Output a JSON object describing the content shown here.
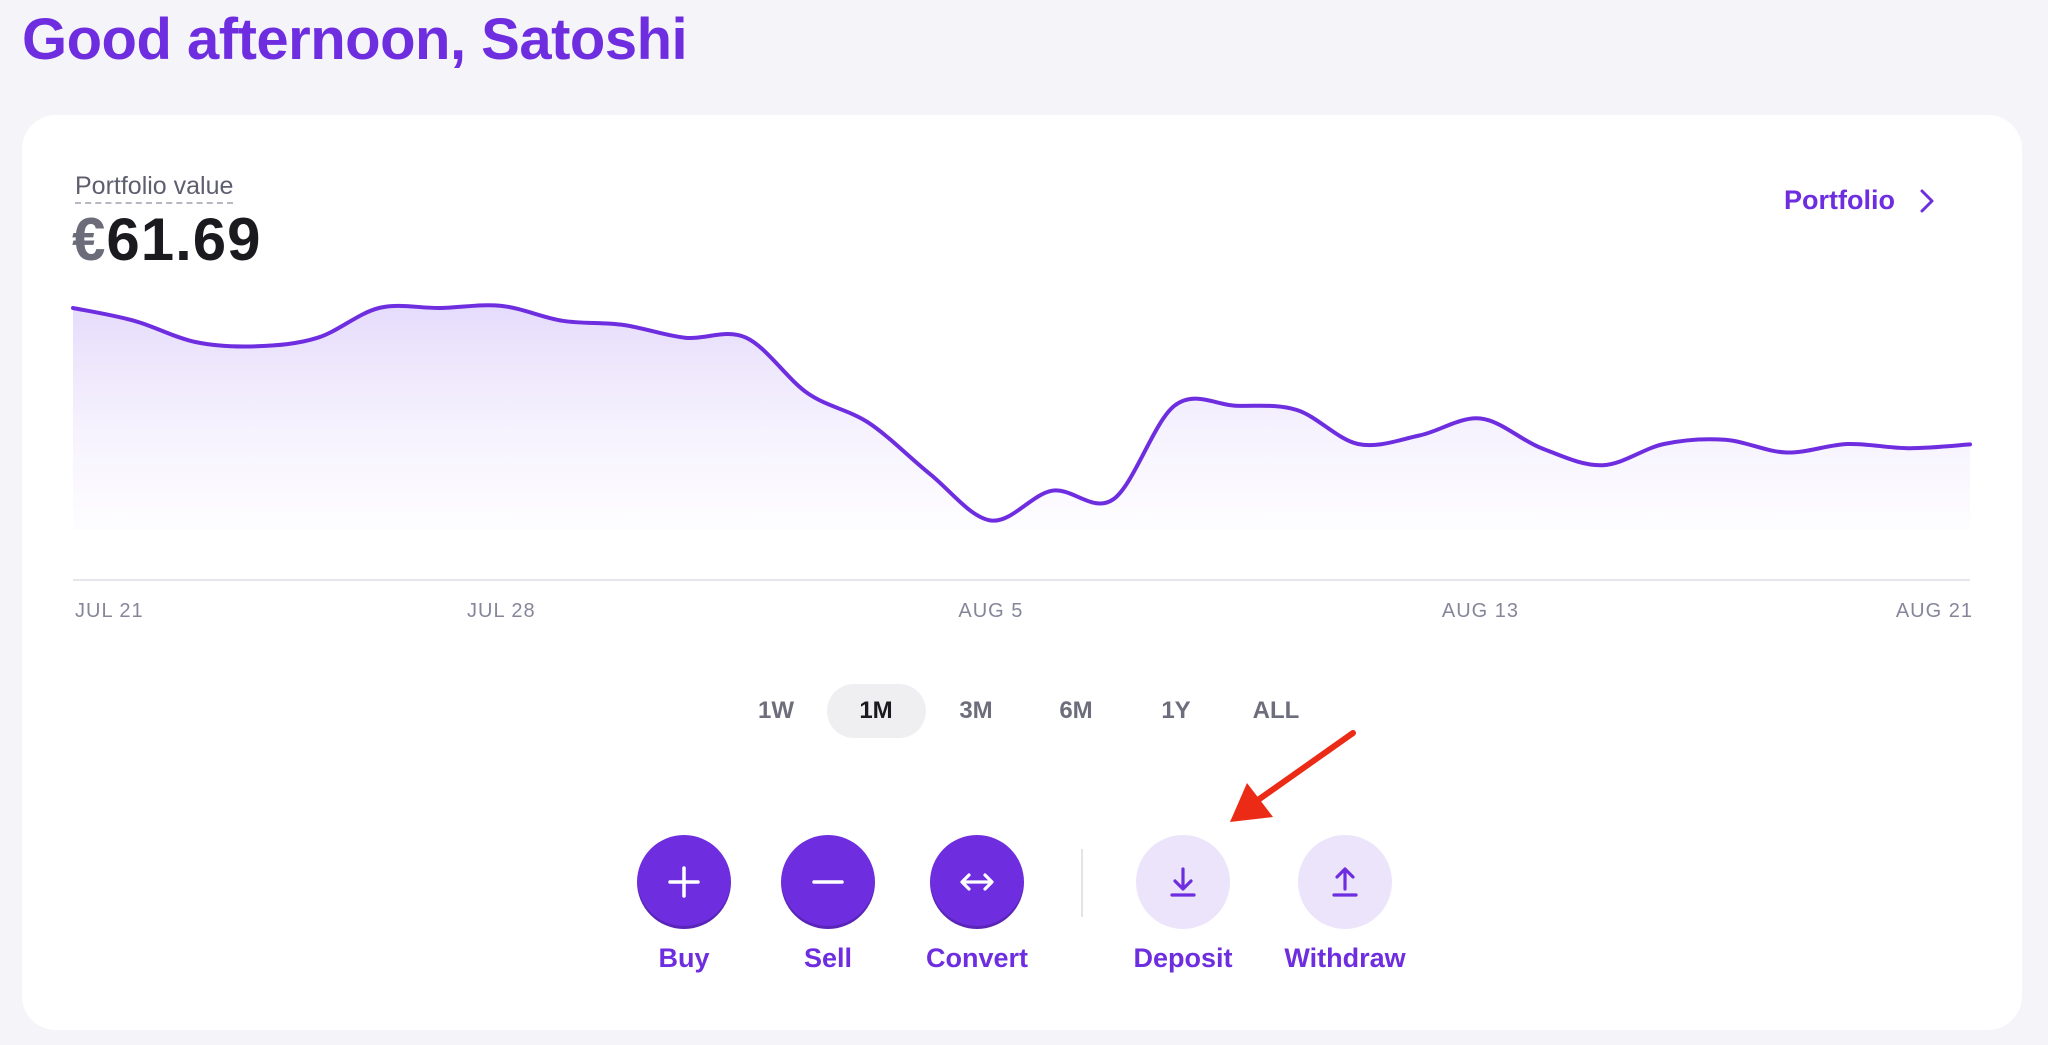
{
  "greeting": "Good afternoon, Satoshi",
  "portfolio": {
    "label": "Portfolio value",
    "currency": "€",
    "amount": "61.69",
    "link_label": "Portfolio"
  },
  "chart_data": {
    "type": "area",
    "title": "",
    "xlabel": "",
    "ylabel": "",
    "x_tick_labels": [
      "JUL 21",
      "JUL 28",
      "AUG 5",
      "AUG 13",
      "AUG 21"
    ],
    "x": [
      "Jul 21",
      "Jul 22",
      "Jul 23",
      "Jul 24",
      "Jul 25",
      "Jul 26",
      "Jul 27",
      "Jul 28",
      "Jul 29",
      "Jul 30",
      "Jul 31",
      "Aug 1",
      "Aug 2",
      "Aug 3",
      "Aug 4",
      "Aug 5",
      "Aug 6",
      "Aug 7",
      "Aug 8",
      "Aug 9",
      "Aug 10",
      "Aug 11",
      "Aug 12",
      "Aug 13",
      "Aug 14",
      "Aug 15",
      "Aug 16",
      "Aug 17",
      "Aug 18",
      "Aug 19",
      "Aug 20",
      "Aug 21"
    ],
    "series": [
      {
        "values": [
          64.9,
          64.6,
          64.1,
          64.0,
          64.2,
          64.9,
          64.9,
          64.95,
          64.6,
          64.5,
          64.2,
          64.2,
          62.9,
          62.2,
          61.0,
          59.9,
          60.6,
          60.4,
          62.6,
          62.6,
          62.5,
          61.7,
          61.9,
          62.3,
          61.6,
          61.2,
          61.7,
          61.8,
          61.5,
          61.7,
          61.6,
          61.69
        ]
      }
    ],
    "ylim": [
      58.5,
      66.5
    ],
    "grid": false,
    "legend": "none",
    "colors": {
      "line": "#6e2ee0",
      "fill": "#ebe2fb"
    }
  },
  "ranges": [
    "1W",
    "1M",
    "3M",
    "6M",
    "1Y",
    "ALL"
  ],
  "active_range": "1M",
  "actions": {
    "buy": "Buy",
    "sell": "Sell",
    "convert": "Convert",
    "deposit": "Deposit",
    "withdraw": "Withdraw"
  },
  "colors": {
    "accent": "#6e2ee0",
    "accent_light": "#ebe4fb",
    "background": "#f5f4f9",
    "annotation_arrow": "#ec2b16"
  },
  "icons": {
    "portfolio_link": "chevron-right-icon",
    "buy": "plus-icon",
    "sell": "minus-icon",
    "convert": "swap-horizontal-icon",
    "deposit": "download-icon",
    "withdraw": "upload-icon"
  }
}
